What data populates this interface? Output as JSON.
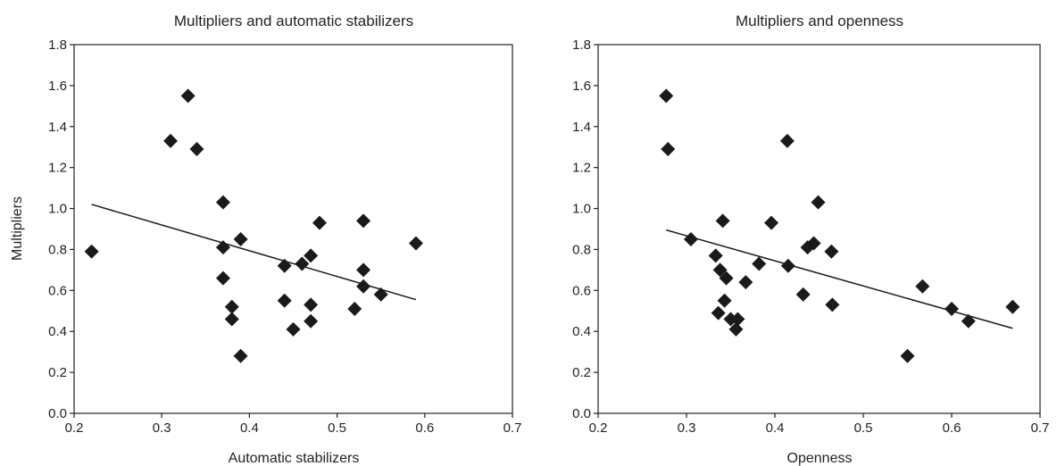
{
  "chart_data": [
    {
      "type": "scatter",
      "title": "Multipliers and automatic stabilizers",
      "xlabel": "Automatic stabilizers",
      "ylabel": "Multipliers",
      "xlim": [
        0.2,
        0.7
      ],
      "ylim": [
        0.0,
        1.8
      ],
      "xticks": [
        "0.2",
        "0.3",
        "0.4",
        "0.5",
        "0.6",
        "0.7"
      ],
      "yticks": [
        "0.0",
        "0.2",
        "0.4",
        "0.6",
        "0.8",
        "1.0",
        "1.2",
        "1.4",
        "1.6",
        "1.8"
      ],
      "grid": false,
      "marker": "diamond",
      "marker_color": "#1a1a1a",
      "points": [
        [
          0.22,
          0.79
        ],
        [
          0.31,
          1.33
        ],
        [
          0.33,
          1.55
        ],
        [
          0.34,
          1.29
        ],
        [
          0.37,
          1.03
        ],
        [
          0.37,
          0.81
        ],
        [
          0.37,
          0.66
        ],
        [
          0.38,
          0.52
        ],
        [
          0.38,
          0.46
        ],
        [
          0.39,
          0.85
        ],
        [
          0.39,
          0.28
        ],
        [
          0.44,
          0.72
        ],
        [
          0.44,
          0.55
        ],
        [
          0.45,
          0.41
        ],
        [
          0.46,
          0.73
        ],
        [
          0.47,
          0.77
        ],
        [
          0.47,
          0.53
        ],
        [
          0.47,
          0.45
        ],
        [
          0.48,
          0.93
        ],
        [
          0.52,
          0.51
        ],
        [
          0.53,
          0.94
        ],
        [
          0.53,
          0.7
        ],
        [
          0.53,
          0.62
        ],
        [
          0.55,
          0.58
        ],
        [
          0.59,
          0.83
        ]
      ],
      "trendline": [
        [
          0.22,
          1.02
        ],
        [
          0.59,
          0.555
        ]
      ]
    },
    {
      "type": "scatter",
      "title": "Multipliers and openness",
      "xlabel": "Openness",
      "ylabel": "",
      "xlim": [
        0.2,
        0.7
      ],
      "ylim": [
        0.0,
        1.8
      ],
      "xticks": [
        "0.2",
        "0.3",
        "0.4",
        "0.5",
        "0.6",
        "0.7"
      ],
      "yticks": [
        "0.0",
        "0.2",
        "0.4",
        "0.6",
        "0.8",
        "1.0",
        "1.2",
        "1.4",
        "1.6",
        "1.8"
      ],
      "grid": false,
      "marker": "diamond",
      "marker_color": "#1a1a1a",
      "points": [
        [
          0.277,
          1.55
        ],
        [
          0.279,
          1.29
        ],
        [
          0.305,
          0.85
        ],
        [
          0.333,
          0.77
        ],
        [
          0.336,
          0.49
        ],
        [
          0.338,
          0.7
        ],
        [
          0.341,
          0.94
        ],
        [
          0.343,
          0.55
        ],
        [
          0.345,
          0.66
        ],
        [
          0.35,
          0.46
        ],
        [
          0.356,
          0.41
        ],
        [
          0.358,
          0.46
        ],
        [
          0.367,
          0.64
        ],
        [
          0.382,
          0.73
        ],
        [
          0.396,
          0.93
        ],
        [
          0.414,
          1.33
        ],
        [
          0.415,
          0.72
        ],
        [
          0.432,
          0.58
        ],
        [
          0.437,
          0.81
        ],
        [
          0.444,
          0.83
        ],
        [
          0.449,
          1.03
        ],
        [
          0.464,
          0.79
        ],
        [
          0.465,
          0.53
        ],
        [
          0.55,
          0.28
        ],
        [
          0.567,
          0.62
        ],
        [
          0.6,
          0.51
        ],
        [
          0.619,
          0.45
        ],
        [
          0.669,
          0.52
        ]
      ],
      "trendline": [
        [
          0.277,
          0.895
        ],
        [
          0.669,
          0.415
        ]
      ]
    }
  ]
}
